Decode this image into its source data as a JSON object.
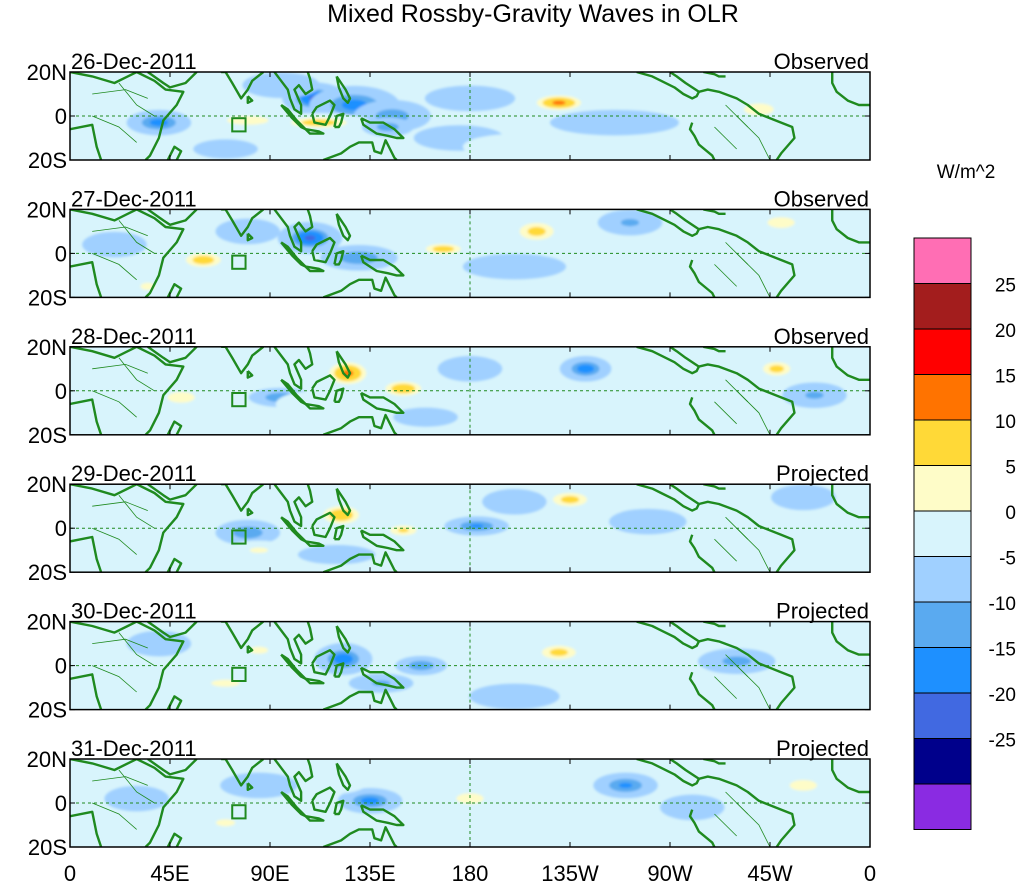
{
  "chart_data": {
    "type": "heatmap",
    "title": "Mixed Rossby-Gravity Waves in OLR",
    "variable": "OLR anomaly",
    "units_label": "W/m^2",
    "lon_ticks": [
      {
        "lon": 0,
        "label": "0"
      },
      {
        "lon": 45,
        "label": "45E"
      },
      {
        "lon": 90,
        "label": "90E"
      },
      {
        "lon": 135,
        "label": "135E"
      },
      {
        "lon": 180,
        "label": "180"
      },
      {
        "lon": 225,
        "label": "135W"
      },
      {
        "lon": 270,
        "label": "90W"
      },
      {
        "lon": 315,
        "label": "45W"
      },
      {
        "lon": 360,
        "label": "0"
      }
    ],
    "lat_ticks": [
      {
        "lat": 20,
        "label": "20N"
      },
      {
        "lat": 0,
        "label": "0"
      },
      {
        "lat": -20,
        "label": "20S"
      }
    ],
    "lon_range": [
      0,
      360
    ],
    "lat_range": [
      -20,
      20
    ],
    "reference_lines": {
      "equator_lat": 0,
      "dateline_lon": 180
    },
    "marker_box": {
      "lon": [
        73,
        79
      ],
      "lat": [
        -7,
        -1
      ]
    },
    "colorbar": {
      "levels": [
        -25,
        -20,
        -15,
        -10,
        -5,
        0,
        5,
        10,
        15,
        20,
        25
      ],
      "level_labels": [
        "-25",
        "-20",
        "-15",
        "-10",
        "-5",
        "0",
        "5",
        "10",
        "15",
        "20",
        "25"
      ],
      "colors_low_to_high": [
        "#8a2be2",
        "#00008b",
        "#4169e1",
        "#1e90ff",
        "#5aaaf0",
        "#a0d0ff",
        "#d8f4fc",
        "#fefcc8",
        "#ffd937",
        "#ff7300",
        "#ff0000",
        "#a31d1d",
        "#ff6eb4"
      ]
    },
    "panels": [
      {
        "date": "26-Dec-2011",
        "status": "Observed",
        "anomalies": [
          {
            "lon": 110,
            "lat": 8,
            "rlon": 10,
            "rlat": 5,
            "value": -16
          },
          {
            "lon": 128,
            "lat": 5,
            "rlon": 14,
            "rlat": 6,
            "value": -12
          },
          {
            "lon": 145,
            "lat": 0,
            "rlon": 12,
            "rlat": 5,
            "value": -8
          },
          {
            "lon": 40,
            "lat": -3,
            "rlon": 10,
            "rlat": 4,
            "value": -12
          },
          {
            "lon": 80,
            "lat": -2,
            "rlon": 14,
            "rlat": 3,
            "value": 9
          },
          {
            "lon": 112,
            "lat": -3,
            "rlon": 16,
            "rlat": 3,
            "value": 13
          },
          {
            "lon": 143,
            "lat": -5,
            "rlon": 8,
            "rlat": 3,
            "value": -8
          },
          {
            "lon": 220,
            "lat": 6,
            "rlon": 12,
            "rlat": 4,
            "value": 16
          },
          {
            "lon": 310,
            "lat": 3,
            "rlon": 10,
            "rlat": 4,
            "value": 9
          },
          {
            "lon": 95,
            "lat": 14,
            "rlon": 12,
            "rlat": 4,
            "value": -4
          },
          {
            "lon": 180,
            "lat": 8,
            "rlon": 14,
            "rlat": 4,
            "value": -4
          },
          {
            "lon": 245,
            "lat": -3,
            "rlon": 20,
            "rlat": 4,
            "value": -4
          },
          {
            "lon": 250,
            "lat": 12,
            "rlon": 12,
            "rlat": 4,
            "value": 4
          },
          {
            "lon": 340,
            "lat": 6,
            "rlon": 8,
            "rlat": 6,
            "value": 4
          },
          {
            "lon": 55,
            "lat": 12,
            "rlon": 8,
            "rlat": 4,
            "value": 4
          },
          {
            "lon": 175,
            "lat": -10,
            "rlon": 14,
            "rlat": 4,
            "value": -4
          },
          {
            "lon": 70,
            "lat": -15,
            "rlon": 10,
            "rlat": 3,
            "value": -3
          },
          {
            "lon": 200,
            "lat": -14,
            "rlon": 16,
            "rlat": 4,
            "value": 3
          }
        ]
      },
      {
        "date": "27-Dec-2011",
        "status": "Observed",
        "anomalies": [
          {
            "lon": 108,
            "lat": 7,
            "rlon": 10,
            "rlat": 5,
            "value": -16
          },
          {
            "lon": 130,
            "lat": -2,
            "rlon": 12,
            "rlat": 4,
            "value": -10
          },
          {
            "lon": 60,
            "lat": -3,
            "rlon": 10,
            "rlat": 4,
            "value": 13
          },
          {
            "lon": 168,
            "lat": 2,
            "rlon": 10,
            "rlat": 3,
            "value": 13
          },
          {
            "lon": 210,
            "lat": 10,
            "rlon": 10,
            "rlat": 5,
            "value": 12
          },
          {
            "lon": 320,
            "lat": 14,
            "rlon": 10,
            "rlat": 4,
            "value": 8
          },
          {
            "lon": 252,
            "lat": 14,
            "rlon": 10,
            "rlat": 4,
            "value": -6
          },
          {
            "lon": 35,
            "lat": -15,
            "rlon": 8,
            "rlat": 4,
            "value": 6
          },
          {
            "lon": 80,
            "lat": 10,
            "rlon": 10,
            "rlat": 4,
            "value": -5
          },
          {
            "lon": 200,
            "lat": -6,
            "rlon": 16,
            "rlat": 4,
            "value": -4
          },
          {
            "lon": 280,
            "lat": 5,
            "rlon": 14,
            "rlat": 5,
            "value": 4
          },
          {
            "lon": 330,
            "lat": -8,
            "rlon": 12,
            "rlat": 4,
            "value": 3
          },
          {
            "lon": 140,
            "lat": 14,
            "rlon": 12,
            "rlat": 4,
            "value": 4
          },
          {
            "lon": 20,
            "lat": 4,
            "rlon": 10,
            "rlat": 4,
            "value": -4
          }
        ]
      },
      {
        "date": "28-Dec-2011",
        "status": "Observed",
        "anomalies": [
          {
            "lon": 125,
            "lat": 8,
            "rlon": 10,
            "rlat": 6,
            "value": 16
          },
          {
            "lon": 150,
            "lat": 1,
            "rlon": 10,
            "rlat": 4,
            "value": 14
          },
          {
            "lon": 232,
            "lat": 10,
            "rlon": 8,
            "rlat": 4,
            "value": -13
          },
          {
            "lon": 318,
            "lat": 10,
            "rlon": 8,
            "rlat": 4,
            "value": 12
          },
          {
            "lon": 95,
            "lat": -3,
            "rlon": 10,
            "rlat": 3,
            "value": -10
          },
          {
            "lon": 50,
            "lat": -3,
            "rlon": 10,
            "rlat": 4,
            "value": 8
          },
          {
            "lon": 110,
            "lat": -6,
            "rlon": 12,
            "rlat": 4,
            "value": 4
          },
          {
            "lon": 180,
            "lat": 10,
            "rlon": 10,
            "rlat": 4,
            "value": -5
          },
          {
            "lon": 270,
            "lat": 10,
            "rlon": 12,
            "rlat": 5,
            "value": 4
          },
          {
            "lon": 335,
            "lat": -2,
            "rlon": 10,
            "rlat": 4,
            "value": -6
          },
          {
            "lon": 200,
            "lat": -10,
            "rlon": 14,
            "rlat": 4,
            "value": 3
          },
          {
            "lon": 160,
            "lat": -12,
            "rlon": 10,
            "rlat": 3,
            "value": -4
          },
          {
            "lon": 20,
            "lat": -12,
            "rlon": 10,
            "rlat": 4,
            "value": 3
          }
        ]
      },
      {
        "date": "29-Dec-2011",
        "status": "Projected",
        "anomalies": [
          {
            "lon": 122,
            "lat": 6,
            "rlon": 10,
            "rlat": 5,
            "value": 14
          },
          {
            "lon": 150,
            "lat": -1,
            "rlon": 8,
            "rlat": 3,
            "value": 11
          },
          {
            "lon": 183,
            "lat": 1,
            "rlon": 10,
            "rlat": 3,
            "value": -11
          },
          {
            "lon": 225,
            "lat": 13,
            "rlon": 10,
            "rlat": 4,
            "value": 12
          },
          {
            "lon": 80,
            "lat": -2,
            "rlon": 10,
            "rlat": 4,
            "value": -9
          },
          {
            "lon": 85,
            "lat": -10,
            "rlon": 10,
            "rlat": 3,
            "value": 6
          },
          {
            "lon": 30,
            "lat": 3,
            "rlon": 10,
            "rlat": 4,
            "value": 5
          },
          {
            "lon": 200,
            "lat": 12,
            "rlon": 10,
            "rlat": 4,
            "value": -5
          },
          {
            "lon": 260,
            "lat": 3,
            "rlon": 12,
            "rlat": 4,
            "value": -4
          },
          {
            "lon": 320,
            "lat": 2,
            "rlon": 10,
            "rlat": 4,
            "value": 5
          },
          {
            "lon": 330,
            "lat": 14,
            "rlon": 10,
            "rlat": 4,
            "value": -4
          },
          {
            "lon": 170,
            "lat": -12,
            "rlon": 12,
            "rlat": 4,
            "value": 4
          },
          {
            "lon": 120,
            "lat": -12,
            "rlon": 12,
            "rlat": 3,
            "value": -4
          }
        ]
      },
      {
        "date": "30-Dec-2011",
        "status": "Projected",
        "anomalies": [
          {
            "lon": 123,
            "lat": 3,
            "rlon": 9,
            "rlat": 5,
            "value": -13
          },
          {
            "lon": 158,
            "lat": 0,
            "rlon": 8,
            "rlat": 3,
            "value": -10
          },
          {
            "lon": 220,
            "lat": 6,
            "rlon": 10,
            "rlat": 4,
            "value": 12
          },
          {
            "lon": 300,
            "lat": 2,
            "rlon": 12,
            "rlat": 4,
            "value": -7
          },
          {
            "lon": 85,
            "lat": 7,
            "rlon": 10,
            "rlat": 4,
            "value": 6
          },
          {
            "lon": 70,
            "lat": -8,
            "rlon": 12,
            "rlat": 3,
            "value": 7
          },
          {
            "lon": 190,
            "lat": 6,
            "rlon": 10,
            "rlat": 4,
            "value": 5
          },
          {
            "lon": 250,
            "lat": -4,
            "rlon": 14,
            "rlat": 4,
            "value": 4
          },
          {
            "lon": 340,
            "lat": -2,
            "rlon": 10,
            "rlat": 4,
            "value": 5
          },
          {
            "lon": 140,
            "lat": -8,
            "rlon": 10,
            "rlat": 3,
            "value": -6
          },
          {
            "lon": 40,
            "lat": 10,
            "rlon": 10,
            "rlat": 4,
            "value": -4
          },
          {
            "lon": 200,
            "lat": -14,
            "rlon": 14,
            "rlat": 4,
            "value": -4
          }
        ]
      },
      {
        "date": "31-Dec-2011",
        "status": "Projected",
        "anomalies": [
          {
            "lon": 135,
            "lat": 1,
            "rlon": 10,
            "rlat": 4,
            "value": -12
          },
          {
            "lon": 250,
            "lat": 8,
            "rlon": 10,
            "rlat": 4,
            "value": -11
          },
          {
            "lon": 180,
            "lat": 2,
            "rlon": 10,
            "rlat": 4,
            "value": 8
          },
          {
            "lon": 330,
            "lat": 8,
            "rlon": 10,
            "rlat": 4,
            "value": 8
          },
          {
            "lon": 70,
            "lat": -9,
            "rlon": 8,
            "rlat": 3,
            "value": 7
          },
          {
            "lon": 85,
            "lat": 8,
            "rlon": 12,
            "rlat": 4,
            "value": -4
          },
          {
            "lon": 120,
            "lat": 10,
            "rlon": 10,
            "rlat": 4,
            "value": 4
          },
          {
            "lon": 220,
            "lat": -4,
            "rlon": 16,
            "rlat": 4,
            "value": 4
          },
          {
            "lon": 280,
            "lat": -2,
            "rlon": 10,
            "rlat": 4,
            "value": -4
          },
          {
            "lon": 30,
            "lat": 2,
            "rlon": 10,
            "rlat": 4,
            "value": -4
          },
          {
            "lon": 160,
            "lat": -12,
            "rlon": 14,
            "rlat": 4,
            "value": 4
          }
        ]
      }
    ]
  },
  "colors": {
    "background_field": "#d8f4fc",
    "coastline": "#1f8a1f",
    "border": "#000000"
  }
}
